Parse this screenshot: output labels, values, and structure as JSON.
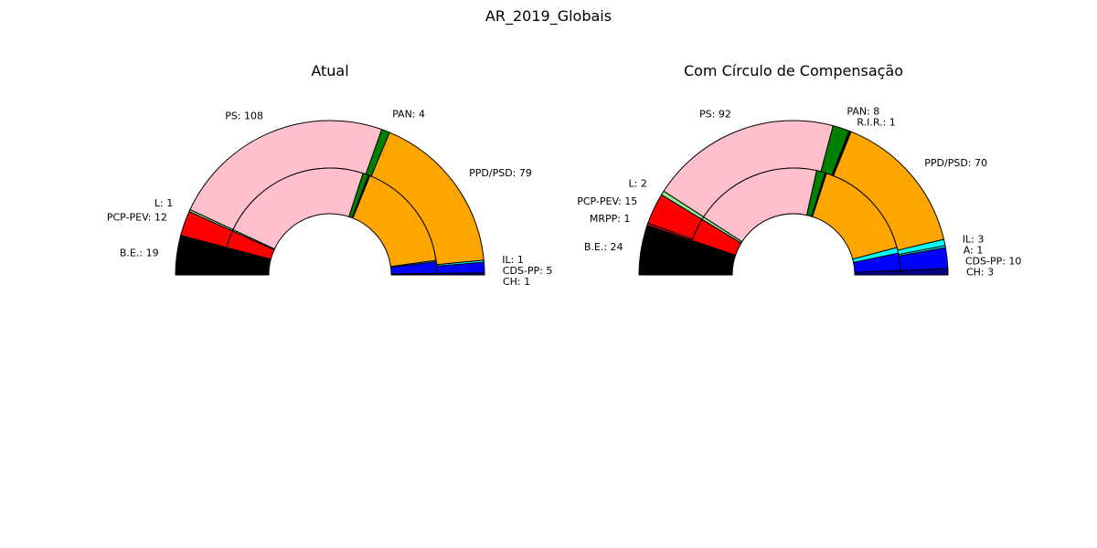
{
  "suptitle": "AR_2019_Globais",
  "chart_data": [
    {
      "type": "pie",
      "subtype": "nested-half-donut",
      "title": "Atual",
      "parties": [
        {
          "label": "B.E.: 19",
          "value": 19,
          "color": "#000000"
        },
        {
          "label": "PCP-PEV: 12",
          "value": 12,
          "color": "#ff0000"
        },
        {
          "label": "L: 1",
          "value": 1,
          "color": "#90ee90"
        },
        {
          "label": "PS: 108",
          "value": 108,
          "color": "#ffc0cb"
        },
        {
          "label": "PAN: 4",
          "value": 4,
          "color": "#008000"
        },
        {
          "label": "PPD/PSD: 79",
          "value": 79,
          "color": "#ffa500"
        },
        {
          "label": "IL: 1",
          "value": 1,
          "color": "#00ffff"
        },
        {
          "label": "CDS-PP: 5",
          "value": 5,
          "color": "#0000ff"
        },
        {
          "label": "CH: 1",
          "value": 1,
          "color": "#00008b"
        }
      ],
      "inner_ring": [
        {
          "value": 19,
          "color": "#000000"
        },
        {
          "value": 12,
          "color": "#ff0000"
        },
        {
          "value": 1,
          "color": "#90ee90"
        },
        {
          "value": 106,
          "color": "#ffc0cb"
        },
        {
          "value": 4,
          "color": "#008000"
        },
        {
          "value": 1,
          "color": "#000000"
        },
        {
          "value": 77,
          "color": "#ffa500"
        },
        {
          "value": 1,
          "color": "#00ffff"
        },
        {
          "value": 8,
          "color": "#0000ff"
        },
        {
          "value": 1,
          "color": "#00008b"
        }
      ]
    },
    {
      "type": "pie",
      "subtype": "nested-half-donut",
      "title": "Com Círculo de Compensação",
      "parties": [
        {
          "label": "B.E.: 24",
          "value": 24,
          "color": "#000000"
        },
        {
          "label": "MRPP: 1",
          "value": 1,
          "color": "#ff0000"
        },
        {
          "label": "PCP-PEV: 15",
          "value": 15,
          "color": "#ff0000"
        },
        {
          "label": "L: 2",
          "value": 2,
          "color": "#90ee90"
        },
        {
          "label": "PS: 92",
          "value": 92,
          "color": "#ffc0cb"
        },
        {
          "label": "PAN: 8",
          "value": 8,
          "color": "#008000"
        },
        {
          "label": "R.I.R.: 1",
          "value": 1,
          "color": "#000000"
        },
        {
          "label": "PPD/PSD: 70",
          "value": 70,
          "color": "#ffa500"
        },
        {
          "label": "IL: 3",
          "value": 3,
          "color": "#00ffff"
        },
        {
          "label": "A: 1",
          "value": 1,
          "color": "#00ffff"
        },
        {
          "label": "CDS-PP: 10",
          "value": 10,
          "color": "#0000ff"
        },
        {
          "label": "CH: 3",
          "value": 3,
          "color": "#00008b"
        }
      ],
      "inner_ring": [
        {
          "value": 24,
          "color": "#000000"
        },
        {
          "value": 16,
          "color": "#ff0000"
        },
        {
          "value": 2,
          "color": "#90ee90"
        },
        {
          "value": 89,
          "color": "#ffc0cb"
        },
        {
          "value": 6,
          "color": "#008000"
        },
        {
          "value": 1,
          "color": "#000000"
        },
        {
          "value": 73,
          "color": "#ffa500"
        },
        {
          "value": 4,
          "color": "#00ffff"
        },
        {
          "value": 12,
          "color": "#0000ff"
        },
        {
          "value": 3,
          "color": "#00008b"
        }
      ]
    }
  ]
}
